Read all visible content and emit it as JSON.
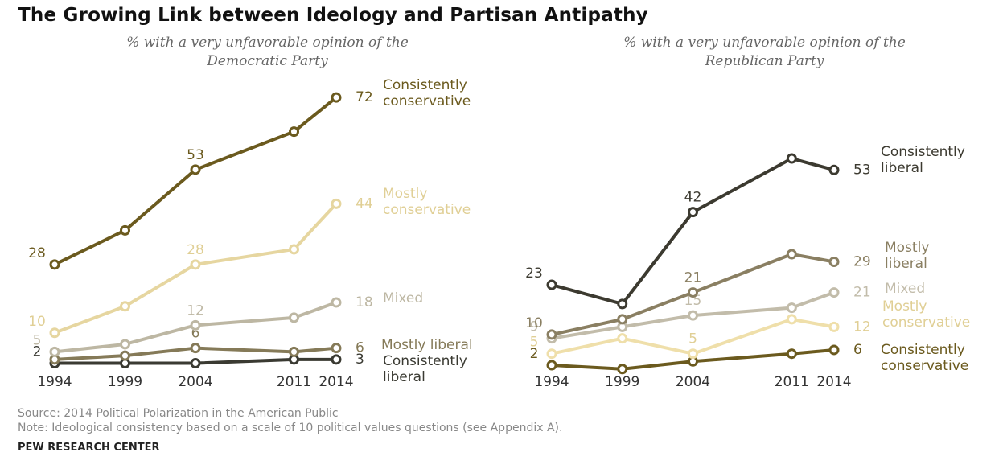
{
  "title": "The Growing Link between Ideology and Partisan Antipathy",
  "chart_data": [
    {
      "type": "line",
      "subtitle": "% with a very unfavorable opinion of the Democratic Party",
      "x": [
        1994,
        1999,
        2004,
        2011,
        2014
      ],
      "xlim": [
        1994,
        2014
      ],
      "xticks": [
        1994,
        1999,
        2004,
        2011,
        2014
      ],
      "ylim": [
        0,
        75
      ],
      "series": [
        {
          "name": "Consistently conservative",
          "color": "#6b5a1e",
          "values": [
            28,
            37,
            53,
            63,
            72
          ],
          "value_labels": [
            "28",
            null,
            "53",
            null,
            "72"
          ]
        },
        {
          "name": "Mostly conservative",
          "color": "#e6d6a0",
          "values": [
            10,
            17,
            28,
            32,
            44
          ],
          "value_labels": [
            "10",
            null,
            "28",
            null,
            "44"
          ]
        },
        {
          "name": "Mixed",
          "color": "#bdb7a3",
          "values": [
            5,
            7,
            12,
            14,
            18
          ],
          "value_labels": [
            "5",
            null,
            "12",
            null,
            "18"
          ]
        },
        {
          "name": "Mostly liberal",
          "color": "#857a58",
          "values": [
            3,
            4,
            6,
            5,
            6
          ],
          "value_labels": [
            null,
            null,
            "6",
            null,
            "6"
          ]
        },
        {
          "name": "Consistently liberal",
          "color": "#3a3a32",
          "values": [
            2,
            2,
            2,
            3,
            3
          ],
          "value_labels": [
            "2",
            null,
            null,
            null,
            "3"
          ]
        }
      ]
    },
    {
      "type": "line",
      "subtitle": "% with a very unfavorable opinion of the Republican Party",
      "x": [
        1994,
        1999,
        2004,
        2011,
        2014
      ],
      "xlim": [
        1994,
        2014
      ],
      "xticks": [
        1994,
        1999,
        2004,
        2011,
        2014
      ],
      "ylim": [
        0,
        60
      ],
      "series": [
        {
          "name": "Consistently liberal",
          "color": "#3c3a30",
          "values": [
            23,
            18,
            42,
            56,
            53
          ],
          "value_labels": [
            "23",
            null,
            "42",
            null,
            "53"
          ]
        },
        {
          "name": "Mostly liberal",
          "color": "#8a7f62",
          "values": [
            10,
            14,
            21,
            31,
            29
          ],
          "value_labels": [
            "10",
            null,
            "21",
            null,
            "29"
          ]
        },
        {
          "name": "Mixed",
          "color": "#c2bcaa",
          "values": [
            9,
            12,
            15,
            17,
            21
          ],
          "value_labels": [
            "9",
            null,
            "15",
            null,
            "21"
          ]
        },
        {
          "name": "Mostly conservative",
          "color": "#efdfaa",
          "values": [
            5,
            9,
            5,
            14,
            12
          ],
          "value_labels": [
            "5",
            null,
            "5",
            null,
            "12"
          ]
        },
        {
          "name": "Consistently conservative",
          "color": "#6b5a1e",
          "values": [
            2,
            1,
            3,
            5,
            6
          ],
          "value_labels": [
            "2",
            null,
            null,
            null,
            "6"
          ]
        }
      ]
    }
  ],
  "source": "Source: 2014 Political Polarization in the American Public",
  "note": "Note: Ideological consistency based on a scale of 10 political values questions (see Appendix A).",
  "brand": "PEW RESEARCH CENTER"
}
